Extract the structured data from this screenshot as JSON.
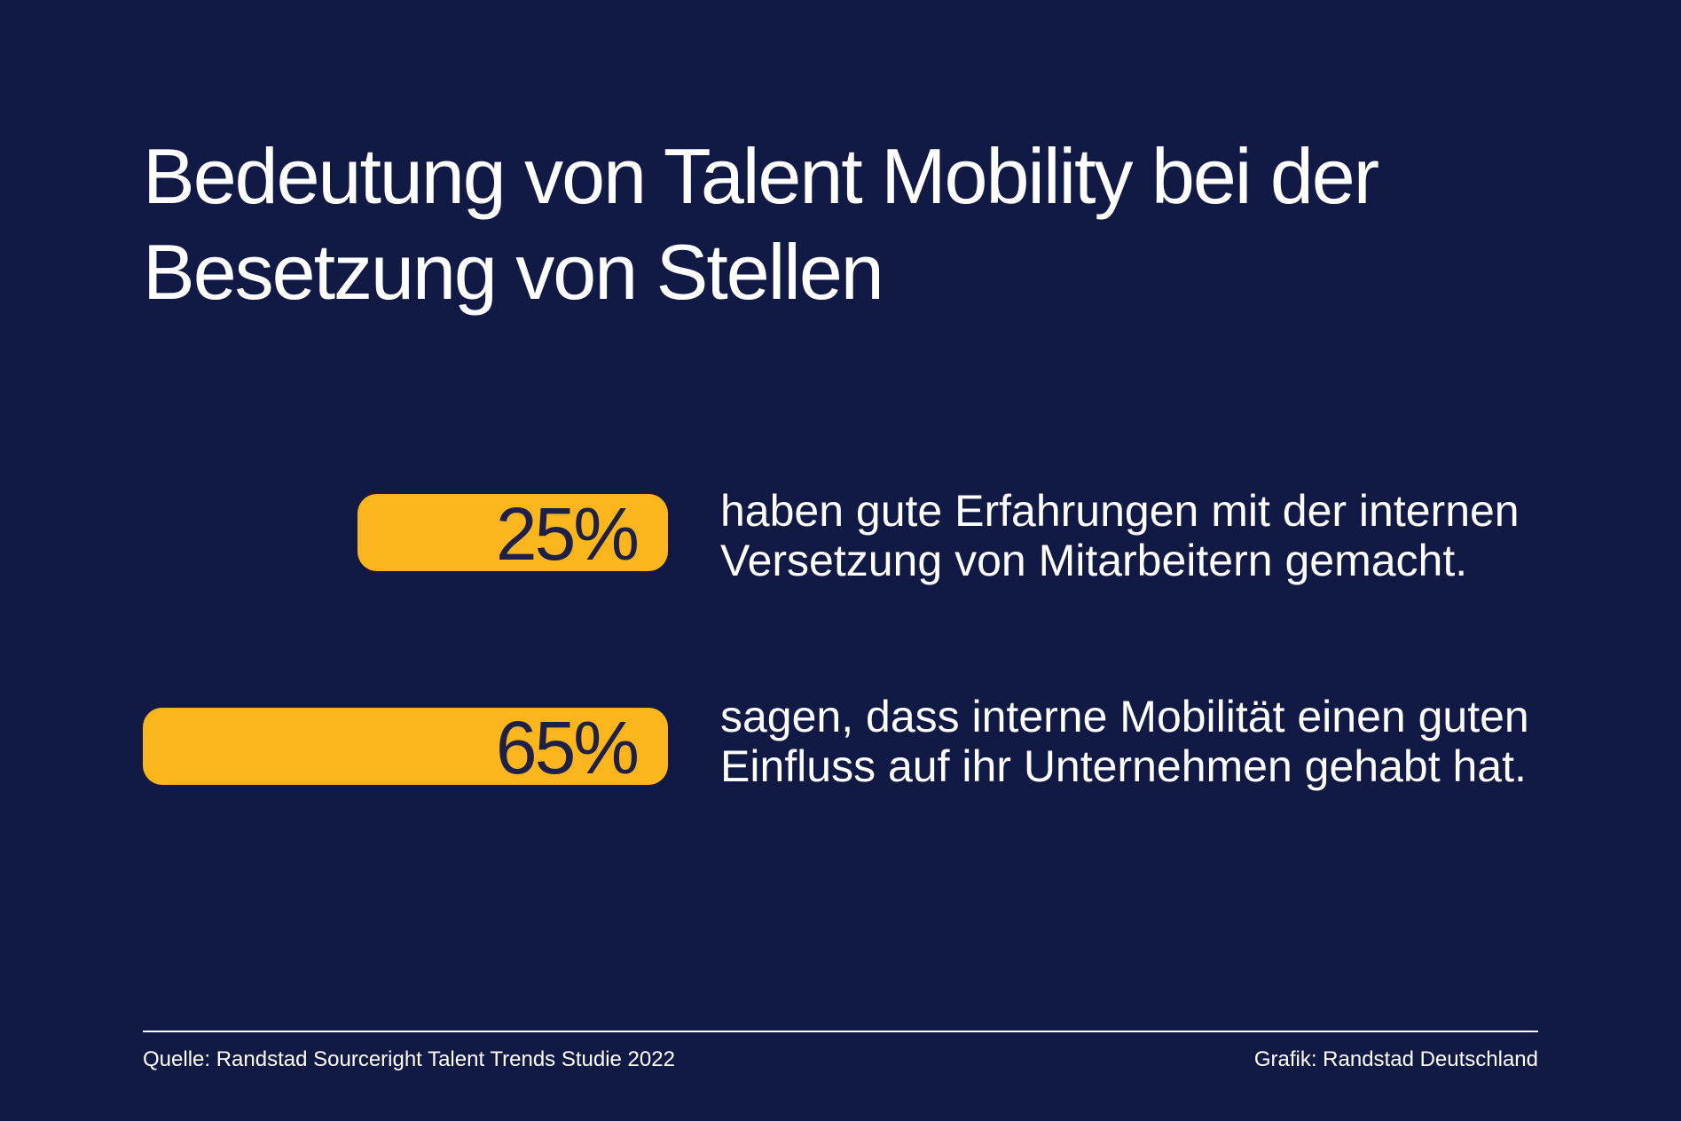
{
  "title": "Bedeutung von Talent Mobility bei der Besetzung von Stellen",
  "colors": {
    "background": "#111a44",
    "bar": "#fbb61d",
    "bar_text": "#1e2145",
    "text": "#ffffff"
  },
  "chart_data": {
    "type": "bar",
    "orientation": "horizontal",
    "title": "Bedeutung von Talent Mobility bei der Besetzung von Stellen",
    "items": [
      {
        "value": 25,
        "label": "25%",
        "description": "haben gute Erfahrungen mit der internen Versetzung von Mitarbeitern gemacht."
      },
      {
        "value": 65,
        "label": "65%",
        "description": "sagen, dass interne Mobilität einen guten Einfluss auf ihr Unternehmen gehabt hat."
      }
    ]
  },
  "footer": {
    "source": "Quelle: Randstad Sourceright Talent Trends Studie 2022",
    "credit": "Grafik: Randstad Deutschland"
  }
}
